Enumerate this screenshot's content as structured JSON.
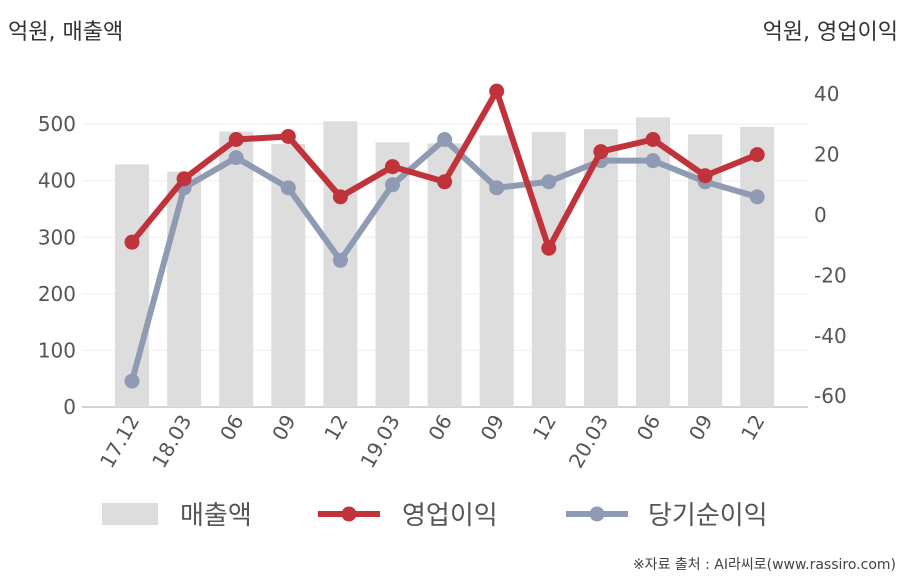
{
  "chart_data": {
    "type": "bar+line",
    "y_left_unit": "억원, 매출액",
    "y_right_unit": "억원, 영업이익",
    "categories": [
      "17.12",
      "18.03",
      "06",
      "09",
      "12",
      "19.03",
      "06",
      "09",
      "12",
      "20.03",
      "06",
      "09",
      "12"
    ],
    "y_left_ticks": [
      "0",
      "100",
      "200",
      "300",
      "400",
      "500"
    ],
    "y_right_ticks": [
      "40",
      "20",
      "0",
      "-20",
      "-40",
      "-60"
    ],
    "y_left_range": [
      0,
      560
    ],
    "y_right_range": [
      -64,
      47
    ],
    "series": [
      {
        "name": "매출액",
        "kind": "bar",
        "axis": "left",
        "color": "#dddddd",
        "values": [
          429,
          416,
          487,
          465,
          505,
          468,
          466,
          480,
          486,
          491,
          512,
          482,
          495
        ]
      },
      {
        "name": "영업이익",
        "kind": "line",
        "axis": "right",
        "color": "#c0333a",
        "values": [
          -9,
          12,
          25,
          26,
          6,
          16,
          11,
          41,
          -11,
          21,
          25,
          13,
          20
        ]
      },
      {
        "name": "당기순이익",
        "kind": "line",
        "axis": "right",
        "color": "#8f9bb3",
        "values": [
          -55,
          9,
          19,
          9,
          -15,
          10,
          25,
          9,
          11,
          18,
          18,
          11,
          6
        ]
      }
    ]
  },
  "source": "※자료 출처 : AI라씨로(www.rassiro.com)"
}
